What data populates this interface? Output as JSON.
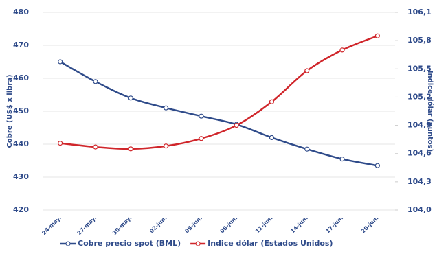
{
  "chart_data": {
    "type": "line",
    "categories": [
      "24-may.",
      "27-may.",
      "30-may.",
      "02-jun.",
      "05-jun.",
      "08-jun.",
      "11-jun.",
      "14-jun.",
      "17-jun.",
      "20-jun."
    ],
    "series": [
      {
        "name": "Cobre precio spot (BML)",
        "color": "#2f4b8a",
        "axis": "y",
        "values": [
          465,
          459,
          454,
          451,
          448.5,
          446,
          442,
          438.5,
          435.5,
          433.5
        ]
      },
      {
        "name": "Indice dólar (Estados Unidos)",
        "color": "#d0262b",
        "axis": "y2",
        "values": [
          104.71,
          104.67,
          104.65,
          104.68,
          104.76,
          104.9,
          105.15,
          105.48,
          105.7,
          105.85
        ]
      }
    ],
    "ylabel": "Cobre (US$ x libra)",
    "y2label": "Indice dólar (puntos)",
    "ylim": [
      420,
      480
    ],
    "yticks": [
      420,
      430,
      440,
      450,
      460,
      470,
      480
    ],
    "y2lim": [
      104.0,
      106.1
    ],
    "y2ticks": [
      {
        "value": 104.0,
        "label": "104,0"
      },
      {
        "value": 104.3,
        "label": "104,3"
      },
      {
        "value": 104.6,
        "label": "104,6"
      },
      {
        "value": 104.9,
        "label": "104,9"
      },
      {
        "value": 105.2,
        "label": "105,2"
      },
      {
        "value": 105.5,
        "label": "105,5"
      },
      {
        "value": 105.8,
        "label": "105,8"
      },
      {
        "value": 106.1,
        "label": "106,1"
      }
    ],
    "grid": true,
    "legend": "bottom"
  }
}
